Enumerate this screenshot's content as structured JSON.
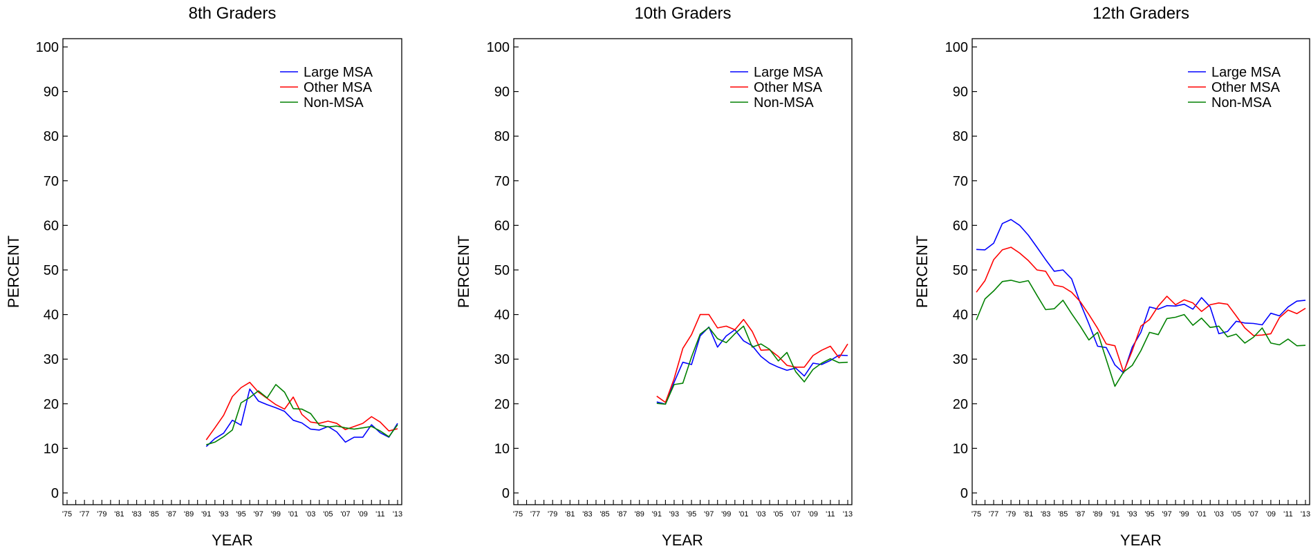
{
  "chart_data": [
    {
      "type": "line",
      "title": "8th Graders",
      "xlabel": "YEAR",
      "ylabel": "PERCENT",
      "ylim": [
        0,
        100
      ],
      "xlim": [
        1975,
        2013
      ],
      "yticks": [
        "0",
        "10",
        "20",
        "30",
        "40",
        "50",
        "60",
        "70",
        "80",
        "90",
        "100"
      ],
      "xtick_labels": [
        "'75",
        "'77",
        "'79",
        "'81",
        "'83",
        "'85",
        "'87",
        "'89",
        "'91",
        "'93",
        "'95",
        "'97",
        "'99",
        "'01",
        "'03",
        "'05",
        "'07",
        "'09",
        "'11",
        "'13"
      ],
      "legend_position": "top-right",
      "grid": false,
      "x": [
        1991,
        1992,
        1993,
        1994,
        1995,
        1996,
        1997,
        1998,
        1999,
        2000,
        2001,
        2002,
        2003,
        2004,
        2005,
        2006,
        2007,
        2008,
        2009,
        2010,
        2011,
        2012,
        2013
      ],
      "series": [
        {
          "name": "Large MSA",
          "color": "#0000ff",
          "values": [
            10.4,
            12.2,
            13.4,
            16.3,
            15.2,
            23.3,
            20.6,
            19.8,
            19.1,
            18.3,
            16.3,
            15.7,
            14.3,
            14.1,
            14.9,
            13.7,
            11.4,
            12.5,
            12.5,
            15.3,
            13.5,
            12.5,
            15.6
          ]
        },
        {
          "name": "Other MSA",
          "color": "#ff0000",
          "values": [
            11.9,
            14.6,
            17.4,
            21.6,
            23.6,
            24.8,
            22.6,
            21.2,
            19.8,
            18.8,
            21.5,
            17.6,
            15.9,
            15.6,
            16.1,
            15.6,
            14.2,
            14.9,
            15.6,
            17.1,
            15.9,
            13.9,
            14.4
          ]
        },
        {
          "name": "Non-MSA",
          "color": "#008000",
          "values": [
            10.8,
            11.4,
            12.6,
            14.1,
            20.2,
            21.4,
            22.9,
            21.3,
            24.3,
            22.6,
            18.9,
            18.8,
            17.8,
            15.2,
            14.8,
            15.0,
            14.6,
            14.3,
            14.6,
            14.9,
            13.9,
            12.6,
            15.3
          ]
        }
      ]
    },
    {
      "type": "line",
      "title": "10th Graders",
      "xlabel": "YEAR",
      "ylabel": "PERCENT",
      "ylim": [
        0,
        100
      ],
      "xlim": [
        1975,
        2013
      ],
      "yticks": [
        "0",
        "10",
        "20",
        "30",
        "40",
        "50",
        "60",
        "70",
        "80",
        "90",
        "100"
      ],
      "xtick_labels": [
        "'75",
        "'77",
        "'79",
        "'81",
        "'83",
        "'85",
        "'87",
        "'89",
        "'91",
        "'93",
        "'95",
        "'97",
        "'99",
        "'01",
        "'03",
        "'05",
        "'07",
        "'09",
        "'11",
        "'13"
      ],
      "legend_position": "top-right",
      "grid": false,
      "x": [
        1991,
        1992,
        1993,
        1994,
        1995,
        1996,
        1997,
        1998,
        1999,
        2000,
        2001,
        2002,
        2003,
        2004,
        2005,
        2006,
        2007,
        2008,
        2009,
        2010,
        2011,
        2012,
        2013
      ],
      "series": [
        {
          "name": "Large MSA",
          "color": "#0000ff",
          "values": [
            20.4,
            19.9,
            24.8,
            29.3,
            28.8,
            35.2,
            37.2,
            32.7,
            35.2,
            36.6,
            34.1,
            33.0,
            30.6,
            29.1,
            28.2,
            27.5,
            28.0,
            26.2,
            29.1,
            28.8,
            29.7,
            30.9,
            30.8
          ]
        },
        {
          "name": "Other MSA",
          "color": "#ff0000",
          "values": [
            21.7,
            20.3,
            25.6,
            32.4,
            35.5,
            40.0,
            40.0,
            37.0,
            37.4,
            36.6,
            38.9,
            36.2,
            32.0,
            32.1,
            30.6,
            28.6,
            28.2,
            28.2,
            30.8,
            32.0,
            32.9,
            30.3,
            33.4
          ]
        },
        {
          "name": "Non-MSA",
          "color": "#008000",
          "values": [
            20.1,
            19.9,
            24.3,
            24.6,
            30.5,
            35.6,
            37.1,
            34.6,
            33.7,
            35.7,
            37.4,
            32.7,
            33.4,
            32.2,
            29.6,
            31.5,
            27.2,
            24.9,
            27.7,
            29.1,
            30.1,
            29.2,
            29.3
          ]
        }
      ]
    },
    {
      "type": "line",
      "title": "12th Graders",
      "xlabel": "YEAR",
      "ylabel": "PERCENT",
      "ylim": [
        0,
        100
      ],
      "xlim": [
        1975,
        2013
      ],
      "yticks": [
        "0",
        "10",
        "20",
        "30",
        "40",
        "50",
        "60",
        "70",
        "80",
        "90",
        "100"
      ],
      "xtick_labels": [
        "'75",
        "'77",
        "'79",
        "'81",
        "'83",
        "'85",
        "'87",
        "'89",
        "'91",
        "'93",
        "'95",
        "'97",
        "'99",
        "'01",
        "'03",
        "'05",
        "'07",
        "'09",
        "'11",
        "'13"
      ],
      "legend_position": "top-right",
      "grid": false,
      "x": [
        1975,
        1976,
        1977,
        1978,
        1979,
        1980,
        1981,
        1982,
        1983,
        1984,
        1985,
        1986,
        1987,
        1988,
        1989,
        1990,
        1991,
        1992,
        1993,
        1994,
        1995,
        1996,
        1997,
        1998,
        1999,
        2000,
        2001,
        2002,
        2003,
        2004,
        2005,
        2006,
        2007,
        2008,
        2009,
        2010,
        2011,
        2012,
        2013
      ],
      "series": [
        {
          "name": "Large MSA",
          "color": "#0000ff",
          "values": [
            54.6,
            54.5,
            56.0,
            60.4,
            61.3,
            60.0,
            57.8,
            55.1,
            52.3,
            49.7,
            50.0,
            48.0,
            42.6,
            37.9,
            32.9,
            32.6,
            28.7,
            26.9,
            32.7,
            36.0,
            41.7,
            41.2,
            42.0,
            41.9,
            42.3,
            41.2,
            43.8,
            41.7,
            35.7,
            36.2,
            38.5,
            38.1,
            38.0,
            37.7,
            40.3,
            39.7,
            41.7,
            43.0,
            43.2
          ]
        },
        {
          "name": "Other MSA",
          "color": "#ff0000",
          "values": [
            45.0,
            47.6,
            52.3,
            54.5,
            55.1,
            53.8,
            52.1,
            50.0,
            49.7,
            46.6,
            46.2,
            45.0,
            42.9,
            40.0,
            36.9,
            33.4,
            33.0,
            27.1,
            31.9,
            37.4,
            38.9,
            41.9,
            44.1,
            42.2,
            43.3,
            42.6,
            40.7,
            42.2,
            42.6,
            42.3,
            39.7,
            37.0,
            35.3,
            35.4,
            35.7,
            39.3,
            41.0,
            40.2,
            41.4
          ]
        },
        {
          "name": "Non-MSA",
          "color": "#008000",
          "values": [
            38.8,
            43.5,
            45.3,
            47.4,
            47.7,
            47.2,
            47.6,
            44.3,
            41.1,
            41.3,
            43.2,
            40.2,
            37.4,
            34.3,
            36.0,
            29.9,
            23.9,
            27.1,
            28.6,
            31.9,
            36.0,
            35.5,
            39.1,
            39.4,
            40.0,
            37.6,
            39.2,
            37.1,
            37.4,
            35.0,
            35.6,
            33.6,
            34.9,
            37.0,
            33.6,
            33.2,
            34.5,
            33.0,
            33.1
          ]
        }
      ]
    }
  ]
}
